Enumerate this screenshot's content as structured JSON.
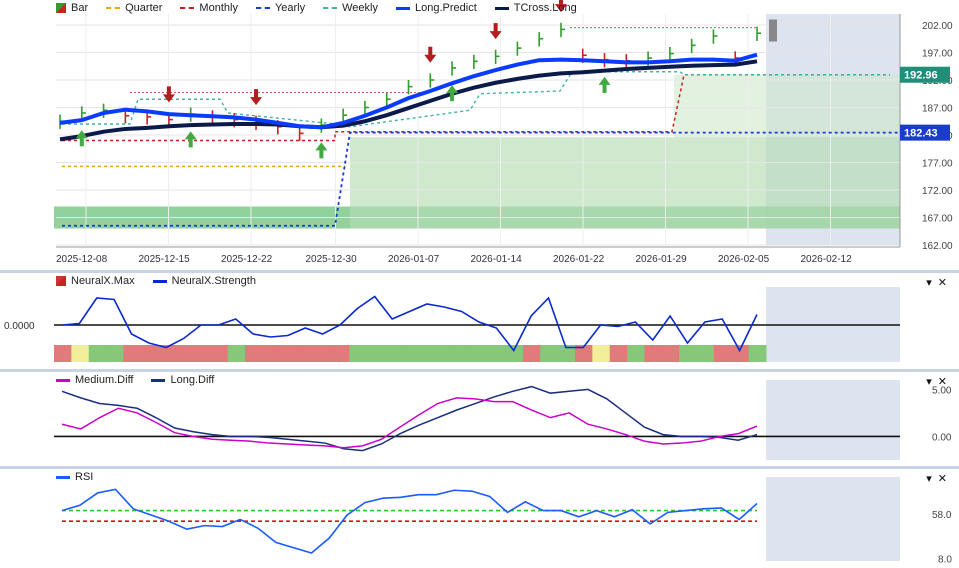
{
  "chart_data": [
    {
      "type": "line",
      "legend": [
        {
          "label": "Bar",
          "color": "#2e9e2e",
          "style": "icon"
        },
        {
          "label": "Quarter",
          "color": "#e6a700",
          "style": "dashed"
        },
        {
          "label": "Monthly",
          "color": "#cc1f1f",
          "style": "dashed"
        },
        {
          "label": "Yearly",
          "color": "#1a3ccc",
          "style": "dashed"
        },
        {
          "label": "Weekly",
          "color": "#3fb3a8",
          "style": "dashed"
        },
        {
          "label": "Long.Predict",
          "color": "#0a3cff",
          "style": "solid"
        },
        {
          "label": "TCross.Long",
          "color": "#0a1a4a",
          "style": "solid"
        }
      ],
      "x_tick_labels": [
        "2025-12-08",
        "2025-12-15",
        "2025-12-22",
        "2025-12-30",
        "2026-01-07",
        "2026-01-14",
        "2026-01-22",
        "2026-01-29",
        "2026-02-05",
        "2026-02-12"
      ],
      "y_tick_labels": [
        "202.00",
        "197.00",
        "192.00",
        "187.00",
        "182.00",
        "177.00",
        "172.00",
        "167.00",
        "162.00"
      ],
      "ylim": [
        162,
        204
      ],
      "price_tags": [
        {
          "value": 192.96,
          "label": "192.96",
          "color": "#1f8f7a"
        },
        {
          "value": 182.43,
          "label": "182.43",
          "color": "#1a3ccc"
        }
      ],
      "series": [
        {
          "name": "Long.Predict",
          "values": [
            184.2,
            184.7,
            186.0,
            186.6,
            186.3,
            185.8,
            185.6,
            185.4,
            185.2,
            184.8,
            184.2,
            183.6,
            183.4,
            184.2,
            185.5,
            187.0,
            188.7,
            190.0,
            191.4,
            192.7,
            193.8,
            194.8,
            195.6,
            195.7,
            195.6,
            195.4,
            195.2,
            195.2,
            195.4,
            195.7,
            195.7,
            195.5,
            196.6
          ]
        },
        {
          "name": "TCross.Long",
          "values": [
            181.2,
            181.8,
            182.6,
            183.1,
            183.3,
            183.6,
            183.8,
            183.9,
            184.0,
            184.0,
            183.9,
            183.6,
            183.4,
            183.7,
            184.5,
            185.6,
            186.9,
            188.2,
            189.5,
            190.6,
            191.5,
            192.2,
            192.8,
            193.2,
            193.4,
            193.7,
            194.0,
            194.2,
            194.4,
            194.6,
            194.7,
            194.8,
            195.4
          ]
        },
        {
          "name": "Bar",
          "values": [
            184.5,
            186.0,
            186.5,
            185.5,
            185.3,
            184.8,
            185.8,
            185.3,
            184.8,
            184.3,
            183.5,
            182.3,
            183.8,
            185.6,
            187.0,
            188.5,
            190.8,
            192.0,
            194.2,
            195.4,
            196.3,
            197.8,
            199.5,
            201.2,
            196.5,
            195.7,
            195.5,
            196.0,
            196.8,
            198.3,
            200.0,
            196.0,
            200.5
          ]
        }
      ],
      "reference_levels": {
        "quarter": 176.3,
        "monthly": 181.0,
        "yearly": 182.43,
        "weekly": 192.96
      },
      "signals": [
        {
          "type": "sell",
          "index": 5
        },
        {
          "type": "sell",
          "index": 9
        },
        {
          "type": "sell",
          "index": 17
        },
        {
          "type": "sell",
          "index": 20
        },
        {
          "type": "sell",
          "index": 23
        },
        {
          "type": "buy",
          "index": 1
        },
        {
          "type": "buy",
          "index": 6
        },
        {
          "type": "buy",
          "index": 12
        },
        {
          "type": "buy",
          "index": 18
        },
        {
          "type": "buy",
          "index": 25
        }
      ]
    },
    {
      "type": "line",
      "legend": [
        {
          "label": "NeuralX.Max",
          "color": "#cc3333",
          "style": "icon"
        },
        {
          "label": "NeuralX.Strength",
          "color": "#0a2acc",
          "style": "solid"
        }
      ],
      "y_tick_labels": [
        "0.0000"
      ],
      "ylim": [
        -1,
        1
      ],
      "series": [
        {
          "name": "NeuralX.Strength",
          "values": [
            0.0,
            0.05,
            0.9,
            0.85,
            -0.3,
            -0.6,
            -0.75,
            -0.45,
            0.0,
            0.0,
            0.2,
            -0.3,
            -0.4,
            -0.35,
            -0.1,
            -0.3,
            0.0,
            0.55,
            0.95,
            0.2,
            0.45,
            0.7,
            0.6,
            0.45,
            0.1,
            -0.1,
            -0.85,
            0.3,
            0.9,
            -0.75,
            -0.75,
            0.0,
            -0.05,
            0.1,
            -0.5,
            0.3,
            -0.6,
            0.1,
            0.2,
            -0.85,
            0.35
          ]
        },
        {
          "name": "NeuralX.Max",
          "values": [
            "r",
            "y",
            "g",
            "g",
            "r",
            "r",
            "r",
            "r",
            "r",
            "r",
            "g",
            "r",
            "r",
            "r",
            "r",
            "r",
            "r",
            "g",
            "g",
            "g",
            "g",
            "g",
            "g",
            "g",
            "g",
            "g",
            "g",
            "r",
            "g",
            "g",
            "r",
            "y",
            "r",
            "g",
            "r",
            "r",
            "g",
            "g",
            "r",
            "r",
            "g"
          ]
        }
      ]
    },
    {
      "type": "line",
      "legend": [
        {
          "label": "Medium.Diff",
          "color": "#cc00cc",
          "style": "solid"
        },
        {
          "label": "Long.Diff",
          "color": "#1a2e80",
          "style": "solid"
        }
      ],
      "y_tick_labels": [
        "5.00",
        "0.00"
      ],
      "ylim": [
        -2.5,
        6
      ],
      "series": [
        {
          "name": "Long.Diff",
          "values": [
            4.8,
            4.1,
            3.5,
            3.3,
            3.0,
            2.0,
            0.9,
            0.5,
            0.2,
            0.0,
            0.0,
            -0.1,
            -0.3,
            -0.5,
            -0.7,
            -1.3,
            -1.5,
            -0.8,
            0.3,
            1.2,
            2.0,
            2.8,
            3.5,
            4.2,
            4.8,
            5.3,
            4.6,
            4.8,
            5.0,
            4.0,
            2.5,
            1.0,
            0.2,
            0.0,
            0.0,
            -0.1,
            -0.4,
            0.2
          ]
        },
        {
          "name": "Medium.Diff",
          "values": [
            1.3,
            0.8,
            2.0,
            3.0,
            2.5,
            1.5,
            0.4,
            0.0,
            -0.3,
            -0.4,
            -0.5,
            -0.7,
            -0.8,
            -0.9,
            -1.0,
            -1.2,
            -1.0,
            -0.3,
            1.0,
            2.3,
            3.5,
            4.1,
            4.0,
            3.7,
            3.7,
            2.8,
            2.0,
            2.5,
            1.3,
            0.8,
            0.2,
            -0.5,
            -0.8,
            -0.7,
            -0.5,
            0.0,
            0.3,
            1.1
          ]
        }
      ]
    },
    {
      "type": "line",
      "legend": [
        {
          "label": "RSI",
          "color": "#1a5cff",
          "style": "solid"
        }
      ],
      "y_tick_labels": [
        "58.0",
        "8.0"
      ],
      "ylim": [
        5,
        100
      ],
      "levels": [
        {
          "value": 62,
          "color": "#22cc22"
        },
        {
          "value": 50,
          "color": "#dd1111"
        }
      ],
      "series": [
        {
          "name": "RSI",
          "values": [
            62,
            68,
            82,
            86,
            64,
            57,
            50,
            41,
            45,
            44,
            52,
            42,
            26,
            20,
            14,
            31,
            57,
            71,
            76,
            77,
            80,
            80,
            85,
            84,
            78,
            60,
            72,
            62,
            62,
            55,
            62,
            55,
            63,
            47,
            60,
            62,
            64,
            65,
            52,
            70
          ]
        }
      ]
    }
  ]
}
